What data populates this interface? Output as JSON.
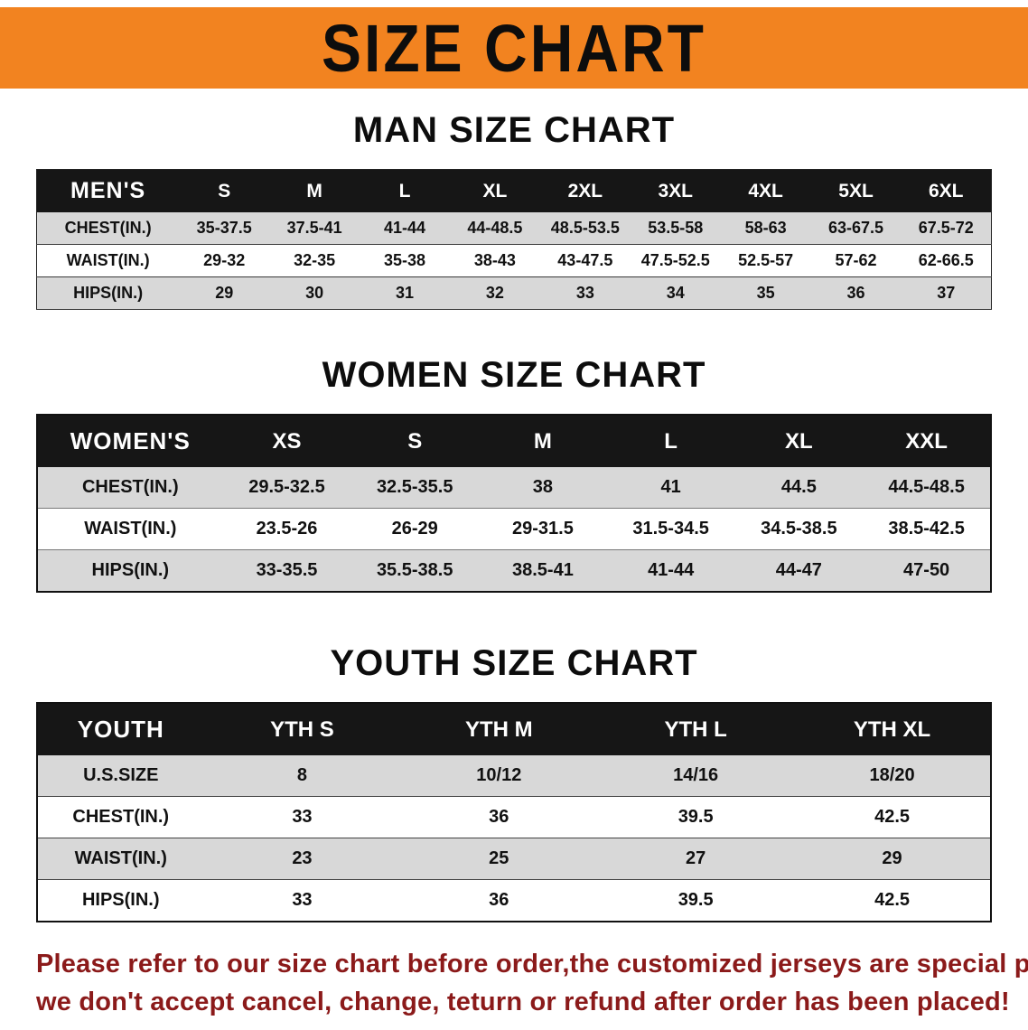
{
  "banner": {
    "title": "SIZE CHART"
  },
  "colors": {
    "banner_bg": "#F28320",
    "banner_text": "#0d0d0d",
    "table_header_bg": "#161616",
    "table_header_text": "#ffffff",
    "row_alt_bg": "#d8d8d8",
    "row_bg": "#ffffff",
    "footer_text": "#8B1A1A"
  },
  "sections": [
    {
      "id": "men",
      "title": "MAN SIZE CHART",
      "table": {
        "header": [
          "MEN'S",
          "S",
          "M",
          "L",
          "XL",
          "2XL",
          "3XL",
          "4XL",
          "5XL",
          "6XL"
        ],
        "rows": [
          [
            "CHEST(IN.)",
            "35-37.5",
            "37.5-41",
            "41-44",
            "44-48.5",
            "48.5-53.5",
            "53.5-58",
            "58-63",
            "63-67.5",
            "67.5-72"
          ],
          [
            "WAIST(IN.)",
            "29-32",
            "32-35",
            "35-38",
            "38-43",
            "43-47.5",
            "47.5-52.5",
            "52.5-57",
            "57-62",
            "62-66.5"
          ],
          [
            "HIPS(IN.)",
            "29",
            "30",
            "31",
            "32",
            "33",
            "34",
            "35",
            "36",
            "37"
          ]
        ]
      }
    },
    {
      "id": "women",
      "title": "WOMEN SIZE CHART",
      "table": {
        "header": [
          "WOMEN'S",
          "XS",
          "S",
          "M",
          "L",
          "XL",
          "XXL"
        ],
        "rows": [
          [
            "CHEST(IN.)",
            "29.5-32.5",
            "32.5-35.5",
            "38",
            "41",
            "44.5",
            "44.5-48.5"
          ],
          [
            "WAIST(IN.)",
            "23.5-26",
            "26-29",
            "29-31.5",
            "31.5-34.5",
            "34.5-38.5",
            "38.5-42.5"
          ],
          [
            "HIPS(IN.)",
            "33-35.5",
            "35.5-38.5",
            "38.5-41",
            "41-44",
            "44-47",
            "47-50"
          ]
        ]
      }
    },
    {
      "id": "youth",
      "title": "YOUTH SIZE CHART",
      "table": {
        "header": [
          "YOUTH",
          "YTH S",
          "YTH M",
          "YTH L",
          "YTH XL"
        ],
        "rows": [
          [
            "U.S.SIZE",
            "8",
            "10/12",
            "14/16",
            "18/20"
          ],
          [
            "CHEST(IN.)",
            "33",
            "36",
            "39.5",
            "42.5"
          ],
          [
            "WAIST(IN.)",
            "23",
            "25",
            "27",
            "29"
          ],
          [
            "HIPS(IN.)",
            "33",
            "36",
            "39.5",
            "42.5"
          ]
        ]
      }
    }
  ],
  "footer": {
    "lines": [
      "Please refer to our size chart before order,the customized jerseys are special products,",
      "we don't accept cancel, change, teturn or refund after order has been placed!"
    ]
  }
}
